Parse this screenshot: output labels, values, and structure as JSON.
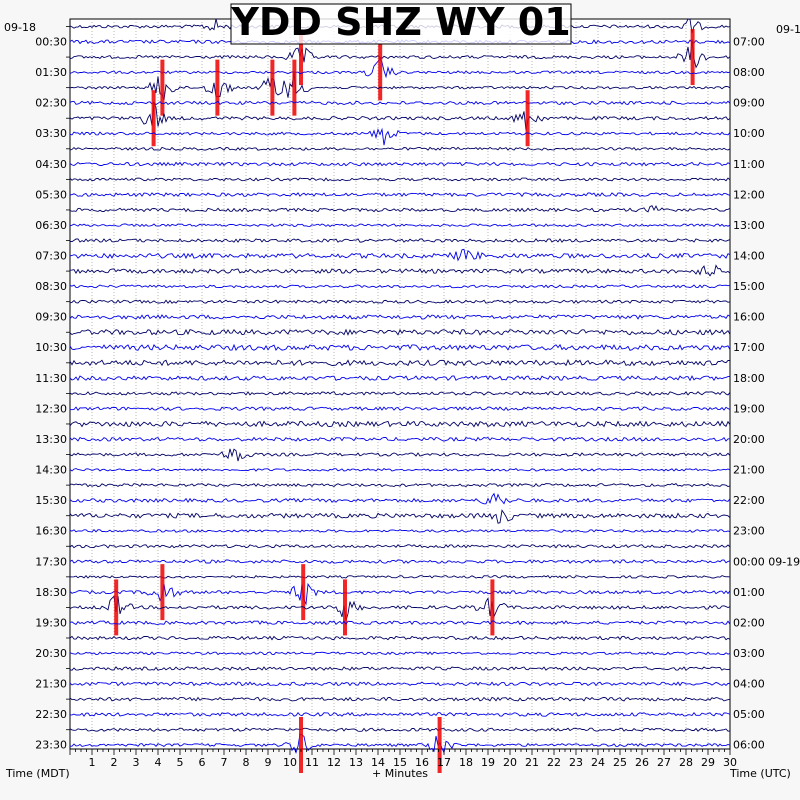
{
  "chart_data": {
    "type": "helicorder",
    "title": "YDD SHZ WY 01",
    "xlabel": "+ Minutes",
    "left_axis_label": "Time (MDT)",
    "right_axis_label": "Time (UTC)",
    "x_range": [
      0,
      30
    ],
    "x_ticks": [
      "1",
      "2",
      "3",
      "4",
      "5",
      "6",
      "7",
      "8",
      "9",
      "10",
      "11",
      "12",
      "13",
      "14",
      "15",
      "16",
      "17",
      "18",
      "19",
      "20",
      "21",
      "22",
      "23",
      "24",
      "25",
      "26",
      "27",
      "28",
      "29",
      "30"
    ],
    "left_date": "09-18",
    "right_date_top": "09-1",
    "right_date_change": "09-19",
    "left_times": [
      "00:30",
      "01:30",
      "02:30",
      "03:30",
      "04:30",
      "05:30",
      "06:30",
      "07:30",
      "08:30",
      "09:30",
      "10:30",
      "11:30",
      "12:30",
      "13:30",
      "14:30",
      "15:30",
      "16:30",
      "17:30",
      "18:30",
      "19:30",
      "20:30",
      "21:30",
      "22:30",
      "23:30"
    ],
    "right_times": [
      "07:00",
      "08:00",
      "09:00",
      "10:00",
      "11:00",
      "12:00",
      "13:00",
      "14:00",
      "15:00",
      "16:00",
      "17:00",
      "18:00",
      "19:00",
      "20:00",
      "21:00",
      "22:00",
      "23:00",
      "00:00",
      "01:00",
      "02:00",
      "03:00",
      "04:00",
      "05:00",
      "06:00"
    ],
    "trace_count": 48,
    "trace_colors": [
      "#000066",
      "#0000ee"
    ],
    "clip_color": "#ee0000",
    "grid": "dotted vertical at each minute",
    "events": [
      {
        "trace": 0,
        "minute": 6.6,
        "strength": 1.2
      },
      {
        "trace": 0,
        "minute": 28.2,
        "strength": 1.6
      },
      {
        "trace": 2,
        "minute": 10.5,
        "strength": 2.5
      },
      {
        "trace": 2,
        "minute": 28.3,
        "strength": 3.0
      },
      {
        "trace": 3,
        "minute": 14.1,
        "strength": 2.6
      },
      {
        "trace": 4,
        "minute": 4.2,
        "strength": 3.4
      },
      {
        "trace": 4,
        "minute": 6.7,
        "strength": 3.0
      },
      {
        "trace": 4,
        "minute": 9.2,
        "strength": 3.2
      },
      {
        "trace": 4,
        "minute": 10.2,
        "strength": 3.0
      },
      {
        "trace": 6,
        "minute": 3.8,
        "strength": 3.0
      },
      {
        "trace": 6,
        "minute": 20.8,
        "strength": 2.6
      },
      {
        "trace": 7,
        "minute": 14.3,
        "strength": 2.0
      },
      {
        "trace": 12,
        "minute": 26.7,
        "strength": 1.0
      },
      {
        "trace": 15,
        "minute": 18.0,
        "strength": 1.4
      },
      {
        "trace": 16,
        "minute": 29.1,
        "strength": 1.4
      },
      {
        "trace": 28,
        "minute": 7.5,
        "strength": 1.8
      },
      {
        "trace": 31,
        "minute": 19.3,
        "strength": 1.8
      },
      {
        "trace": 32,
        "minute": 19.6,
        "strength": 1.5
      },
      {
        "trace": 37,
        "minute": 4.2,
        "strength": 2.6
      },
      {
        "trace": 37,
        "minute": 10.6,
        "strength": 2.6
      },
      {
        "trace": 38,
        "minute": 2.1,
        "strength": 2.4
      },
      {
        "trace": 38,
        "minute": 12.5,
        "strength": 2.4
      },
      {
        "trace": 38,
        "minute": 19.2,
        "strength": 2.4
      },
      {
        "trace": 47,
        "minute": 10.5,
        "strength": 2.5
      },
      {
        "trace": 47,
        "minute": 16.8,
        "strength": 2.5
      }
    ]
  }
}
